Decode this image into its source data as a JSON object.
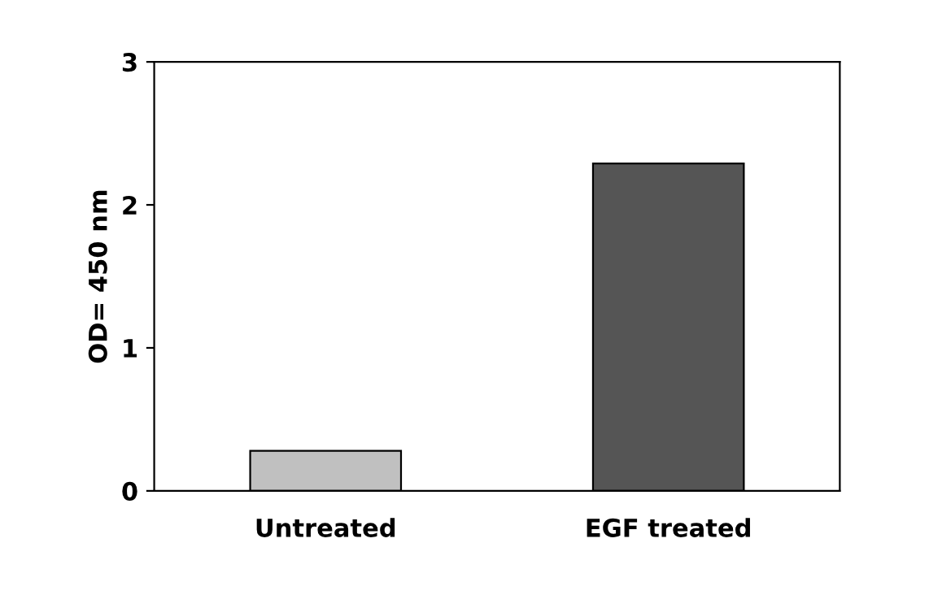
{
  "chart_data": {
    "type": "bar",
    "ylabel": "OD= 450 nm",
    "categories": [
      "Untreated",
      "EGF treated"
    ],
    "values": [
      0.28,
      2.29
    ],
    "colors": [
      "#c0c0c0",
      "#555555"
    ],
    "ylim": [
      0,
      3
    ],
    "yticks": [
      0,
      1,
      2,
      3
    ],
    "grid": false
  }
}
